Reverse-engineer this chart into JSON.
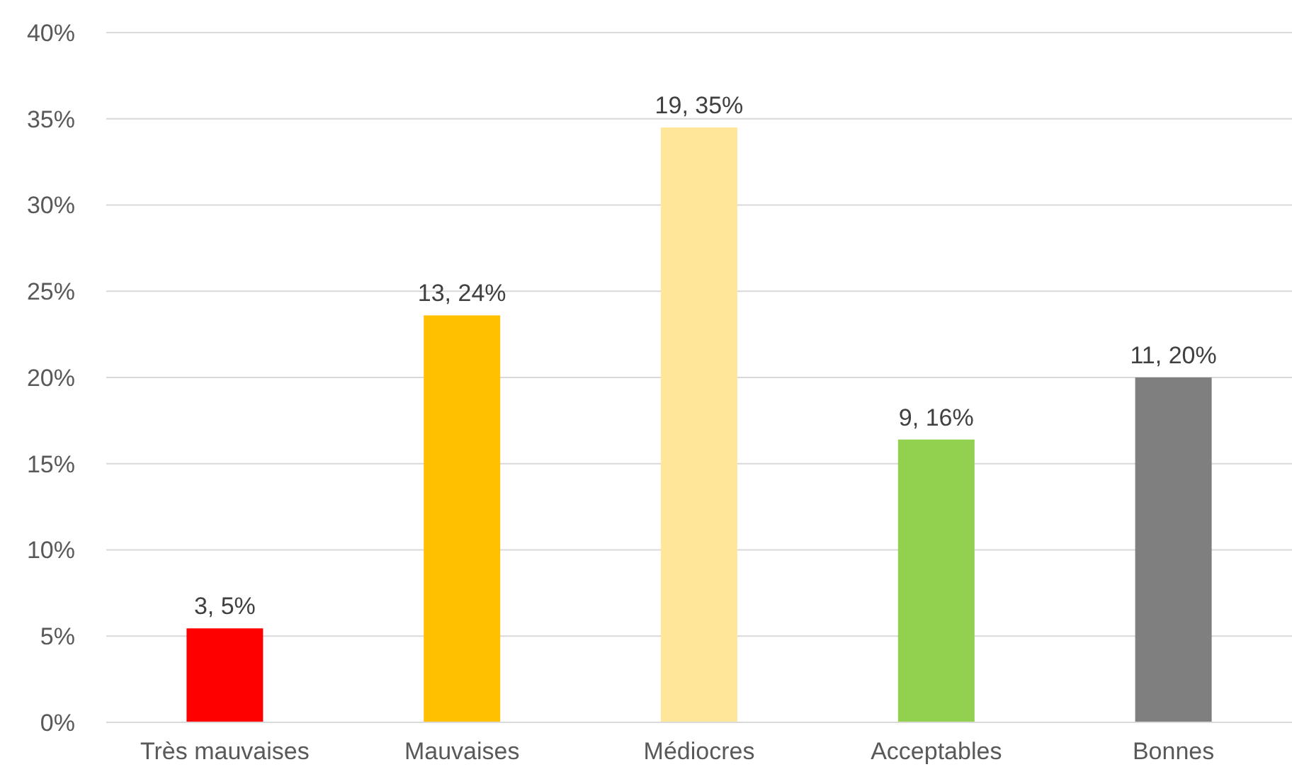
{
  "chart_data": {
    "type": "bar",
    "categories": [
      "Très mauvaises",
      "Mauvaises",
      "Médiocres",
      "Acceptables",
      "Bonnes"
    ],
    "values": [
      5.45,
      23.6,
      34.5,
      16.4,
      20
    ],
    "colors": [
      "#ff0000",
      "#ffc000",
      "#ffe699",
      "#92d050",
      "#7f7f7f"
    ],
    "value_labels": [
      "3, 5%",
      "13, 24%",
      "19, 35%",
      "9, 16%",
      "11, 20%"
    ],
    "ylim": [
      0,
      40
    ],
    "yticks": [
      {
        "value": 0,
        "label": "0%"
      },
      {
        "value": 5,
        "label": "5%"
      },
      {
        "value": 10,
        "label": "10%"
      },
      {
        "value": 15,
        "label": "15%"
      },
      {
        "value": 20,
        "label": "20%"
      },
      {
        "value": 25,
        "label": "25%"
      },
      {
        "value": 30,
        "label": "30%"
      },
      {
        "value": 35,
        "label": "35%"
      },
      {
        "value": 40,
        "label": "40%"
      }
    ],
    "grid": "y"
  }
}
